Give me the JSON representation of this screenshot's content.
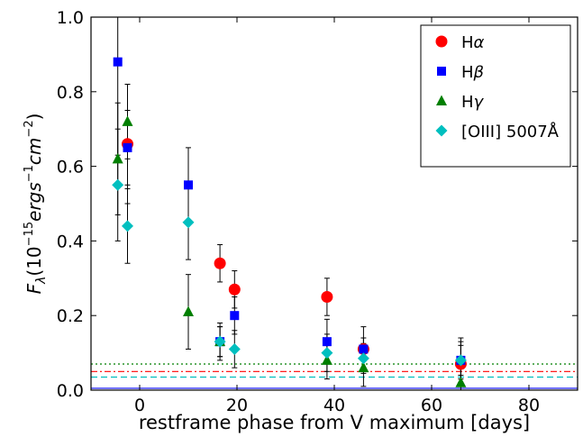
{
  "chart_data": {
    "type": "scatter",
    "title": "",
    "xlabel": "restframe phase from V maximum [days]",
    "ylabel_parts": {
      "prefix": "F",
      "subscript": "λ",
      "open": "(10",
      "exp1": "−15",
      "mid": "ergs",
      "exp2": "−1",
      "mid2": "cm",
      "exp3": "−2",
      "close": ")"
    },
    "xlim": [
      -10,
      90
    ],
    "ylim": [
      0.0,
      1.0
    ],
    "xticks": [
      0,
      20,
      40,
      60,
      80
    ],
    "yticks": [
      0.0,
      0.2,
      0.4,
      0.6,
      0.8,
      1.0
    ],
    "xtick_labels": [
      "0",
      "20",
      "40",
      "60",
      "80"
    ],
    "ytick_labels": [
      "0.0",
      "0.2",
      "0.4",
      "0.6",
      "0.8",
      "1.0"
    ],
    "legend_position": "top-right",
    "series": [
      {
        "name": "Hα",
        "legend_base": "H",
        "legend_sym": "α",
        "marker": "circle",
        "color": "#ff0000",
        "points": [
          {
            "x": -2.5,
            "y": 0.66,
            "err": 0.16
          },
          {
            "x": 16.5,
            "y": 0.34,
            "err": 0.05
          },
          {
            "x": 19.5,
            "y": 0.27,
            "err": 0.05
          },
          {
            "x": 38.5,
            "y": 0.25,
            "err": 0.05
          },
          {
            "x": 46.0,
            "y": 0.11,
            "err": 0.03
          },
          {
            "x": 66.0,
            "y": 0.07,
            "err": 0.05
          }
        ],
        "baseline": 0.05,
        "baseline_style": "dashdot"
      },
      {
        "name": "Hβ",
        "legend_base": "H",
        "legend_sym": "β",
        "marker": "square",
        "color": "#0000ff",
        "points": [
          {
            "x": -4.5,
            "y": 0.88,
            "err": 0.25
          },
          {
            "x": -2.5,
            "y": 0.65,
            "err": 0.1
          },
          {
            "x": 10.0,
            "y": 0.55,
            "err": 0.1
          },
          {
            "x": 16.5,
            "y": 0.13,
            "err": 0.05
          },
          {
            "x": 19.5,
            "y": 0.2,
            "err": 0.05
          },
          {
            "x": 38.5,
            "y": 0.13,
            "err": 0.06
          },
          {
            "x": 46.0,
            "y": 0.11,
            "err": 0.06
          },
          {
            "x": 66.0,
            "y": 0.08,
            "err": 0.06
          }
        ],
        "baseline": 0.005,
        "baseline_style": "solid"
      },
      {
        "name": "Hγ",
        "legend_base": "H",
        "legend_sym": "γ",
        "marker": "triangle",
        "color": "#007f00",
        "points": [
          {
            "x": -4.5,
            "y": 0.62,
            "err": 0.15
          },
          {
            "x": -2.5,
            "y": 0.72,
            "err": 0.1
          },
          {
            "x": 10.0,
            "y": 0.21,
            "err": 0.1
          },
          {
            "x": 16.5,
            "y": 0.13,
            "err": 0.04
          },
          {
            "x": 38.5,
            "y": 0.08,
            "err": 0.05
          },
          {
            "x": 46.0,
            "y": 0.06,
            "err": 0.05
          },
          {
            "x": 66.0,
            "y": 0.02,
            "err": 0.02
          }
        ],
        "baseline": 0.07,
        "baseline_style": "dotted"
      },
      {
        "name": "[OIII] 5007Å",
        "legend_base": "[OIII] 5007Å",
        "legend_sym": "",
        "marker": "diamond",
        "color": "#00bfbf",
        "points": [
          {
            "x": -4.5,
            "y": 0.55,
            "err": 0.15
          },
          {
            "x": -2.5,
            "y": 0.44,
            "err": 0.1
          },
          {
            "x": 10.0,
            "y": 0.45,
            "err": 0.1
          },
          {
            "x": 16.5,
            "y": 0.13,
            "err": 0.04
          },
          {
            "x": 19.5,
            "y": 0.11,
            "err": 0.05
          },
          {
            "x": 38.5,
            "y": 0.1,
            "err": 0.05
          },
          {
            "x": 46.0,
            "y": 0.085,
            "err": 0.04
          },
          {
            "x": 66.0,
            "y": 0.08,
            "err": 0.05
          }
        ],
        "baseline": 0.035,
        "baseline_style": "dashed"
      }
    ]
  }
}
